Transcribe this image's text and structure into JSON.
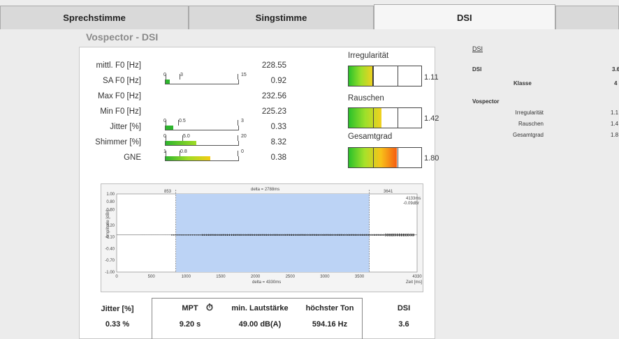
{
  "tabs": [
    "Sprechstimme",
    "Singstimme",
    "DSI"
  ],
  "panel_title": "Vospector - DSI",
  "params": [
    {
      "label": "mittl. F0 [Hz]",
      "value": "228.55"
    },
    {
      "label": "SA F0 [Hz]",
      "value": "0.92",
      "scale": [
        "0",
        "3",
        "15"
      ],
      "fraction": 0.06,
      "color": "#2db52d"
    },
    {
      "label": "Max F0 [Hz]",
      "value": "232.56"
    },
    {
      "label": "Min F0 [Hz]",
      "value": "225.23"
    },
    {
      "label": "Jitter [%]",
      "value": "0.33",
      "scale": [
        "0",
        "0.5",
        "3"
      ],
      "fraction": 0.11,
      "color": "#2db52d"
    },
    {
      "label": "Shimmer [%]",
      "value": "8.32",
      "scale": [
        "0",
        "5.0",
        "20"
      ],
      "fraction": 0.42,
      "color": "linear-gradient(to right,#2db52d,#a0dc25)"
    },
    {
      "label": "GNE",
      "value": "0.38",
      "scale": [
        "1",
        "0.8",
        "0"
      ],
      "fraction": 0.62,
      "color": "linear-gradient(to right,#2db52d,#a0dc25,#f5cc13)"
    }
  ],
  "gauges": [
    {
      "title": "Irregularität",
      "value": "1.11",
      "fraction": 0.34,
      "hi": false
    },
    {
      "title": "Rauschen",
      "value": "1.42",
      "fraction": 0.45,
      "hi": false
    },
    {
      "title": "Gesamtgrad",
      "value": "1.80",
      "fraction": 0.66,
      "hi": true
    }
  ],
  "waveform": {
    "delta_top": "delta = 2788ms",
    "delta_bottom": "delta = 4330ms",
    "sel_start": "853",
    "sel_end": "3641",
    "cursor_info": [
      "4133ms",
      "-0.09dBr"
    ],
    "ylabel": "Amplitude [dBr]",
    "xlabel": "Zeit [ms]",
    "y_ticks": [
      "1.00",
      "0.80",
      "0.60",
      "0.20",
      "-0.10",
      "-0.40",
      "-0.70",
      "-1.00"
    ],
    "x_ticks": [
      "0",
      "500",
      "1000",
      "1500",
      "2000",
      "2500",
      "3000",
      "3500",
      "4330"
    ]
  },
  "chart_data": {
    "type": "area",
    "title": "",
    "xlabel": "Zeit [ms]",
    "ylabel": "Amplitude [dBr]",
    "xlim": [
      0,
      4330
    ],
    "ylim": [
      -1.0,
      1.0
    ],
    "selection_ms": [
      853,
      3641
    ],
    "series": [
      {
        "values": [
          0.0,
          0.02,
          0.03,
          0.03,
          0.03,
          0.03,
          0.03,
          0.03,
          0.05,
          0.0
        ]
      }
    ]
  },
  "bottom": {
    "headers": [
      "Jitter [%]",
      "MPT",
      "min. Lautstärke",
      "höchster Ton",
      "DSI"
    ],
    "values": [
      "0.33 %",
      "9.20 s",
      "49.00 dB(A)",
      "594.16 Hz",
      "3.6"
    ]
  },
  "right_panel": {
    "link": "DSI",
    "dsi_label": "DSI",
    "dsi_value": "3.6",
    "klasse_label": "Klasse",
    "klasse_value": "4",
    "vospector": "Vospector",
    "rows": [
      {
        "label": "Irregularität",
        "value": "1.1"
      },
      {
        "label": "Rauschen",
        "value": "1.4"
      },
      {
        "label": "Gesamtgrad",
        "value": "1.8"
      }
    ]
  },
  "icons": {
    "mpt_icon": "stopwatch-icon"
  }
}
